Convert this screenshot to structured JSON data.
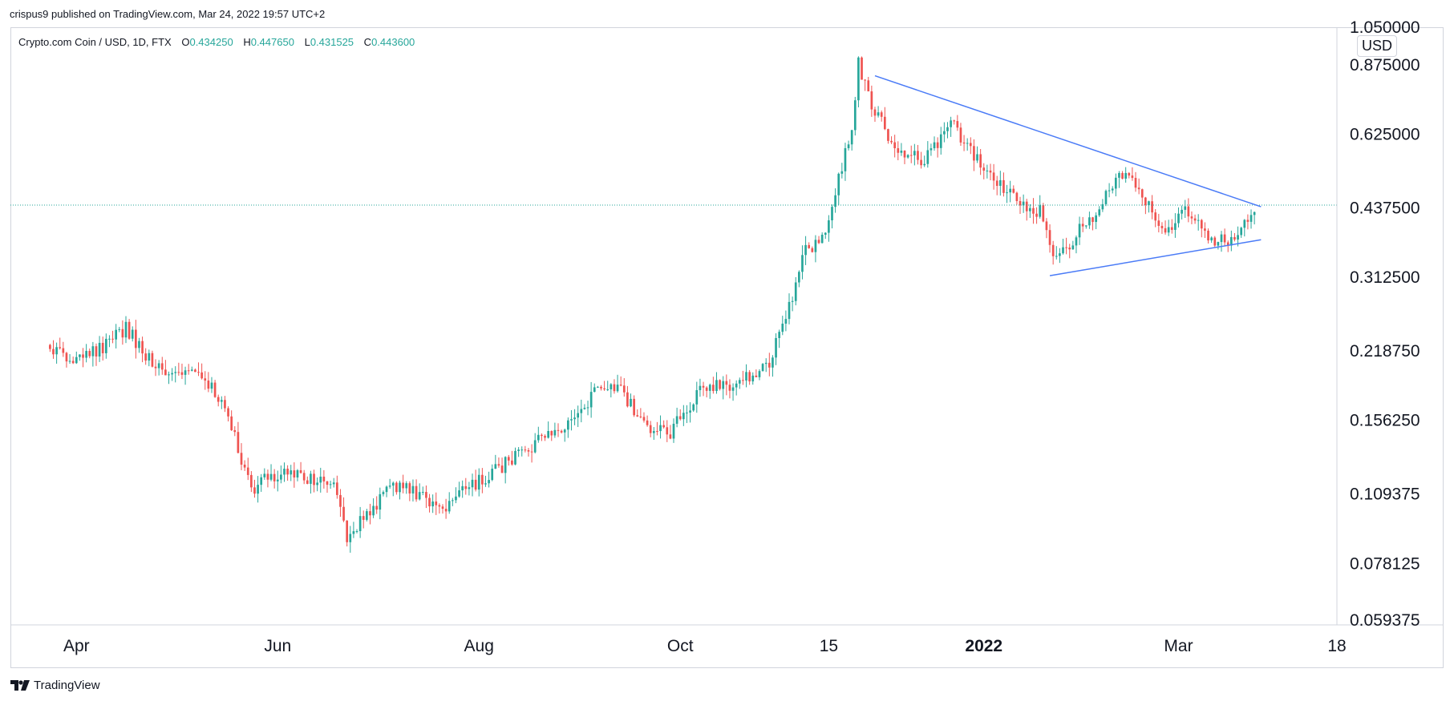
{
  "attribution": "crispus9 published on TradingView.com, Mar 24, 2022 19:57 UTC+2",
  "legend": {
    "symbol": "Crypto.com Coin / USD, 1D, FTX",
    "open_key": "O",
    "open": "0.434250",
    "high_key": "H",
    "high": "0.447650",
    "low_key": "L",
    "low": "0.431525",
    "close_key": "C",
    "close": "0.443600"
  },
  "currency_badge": "USD",
  "footer_logo": "TradingView",
  "colors": {
    "up": "#26a69a",
    "down": "#ef5350",
    "trendline": "#4a7bf7",
    "grid": "#d1d4dc"
  },
  "chart_data": {
    "type": "candlestick",
    "title": "Crypto.com Coin / USD, 1D, FTX",
    "y_scale": "log",
    "ylim": [
      0.058,
      1.05
    ],
    "y_ticks": [
      "1.050000",
      "0.875000",
      "0.625000",
      "0.437500",
      "0.312500",
      "0.218750",
      "0.156250",
      "0.109375",
      "0.078125",
      "0.059375"
    ],
    "y_tick_values": [
      1.05,
      0.875,
      0.625,
      0.4375,
      0.3125,
      0.21875,
      0.15625,
      0.109375,
      0.078125,
      0.059375
    ],
    "x_range": [
      "2021-03-12",
      "2022-04-18"
    ],
    "x_ticks": [
      {
        "label": "Apr",
        "date": "2021-04-01",
        "bold": false
      },
      {
        "label": "Jun",
        "date": "2021-06-01",
        "bold": false
      },
      {
        "label": "Aug",
        "date": "2021-08-01",
        "bold": false
      },
      {
        "label": "Oct",
        "date": "2021-10-01",
        "bold": false
      },
      {
        "label": "15",
        "date": "2021-11-15",
        "bold": false
      },
      {
        "label": "2022",
        "date": "2022-01-01",
        "bold": true
      },
      {
        "label": "Mar",
        "date": "2022-03-01",
        "bold": false
      },
      {
        "label": "18",
        "date": "2022-04-18",
        "bold": false
      }
    ],
    "last_price": 0.4436,
    "anchors": [
      [
        "2021-03-24",
        0.225
      ],
      [
        "2021-03-31",
        0.21
      ],
      [
        "2021-04-10",
        0.225
      ],
      [
        "2021-04-16",
        0.245
      ],
      [
        "2021-04-22",
        0.215
      ],
      [
        "2021-04-28",
        0.195
      ],
      [
        "2021-05-06",
        0.205
      ],
      [
        "2021-05-13",
        0.18
      ],
      [
        "2021-05-19",
        0.145
      ],
      [
        "2021-05-24",
        0.11
      ],
      [
        "2021-05-29",
        0.12
      ],
      [
        "2021-06-08",
        0.12
      ],
      [
        "2021-06-18",
        0.115
      ],
      [
        "2021-06-22",
        0.088
      ],
      [
        "2021-06-26",
        0.095
      ],
      [
        "2021-07-06",
        0.115
      ],
      [
        "2021-07-21",
        0.103
      ],
      [
        "2021-08-04",
        0.12
      ],
      [
        "2021-08-18",
        0.14
      ],
      [
        "2021-08-30",
        0.155
      ],
      [
        "2021-09-06",
        0.185
      ],
      [
        "2021-09-13",
        0.18
      ],
      [
        "2021-09-21",
        0.15
      ],
      [
        "2021-09-28",
        0.148
      ],
      [
        "2021-10-07",
        0.18
      ],
      [
        "2021-10-20",
        0.19
      ],
      [
        "2021-10-27",
        0.2
      ],
      [
        "2021-11-03",
        0.27
      ],
      [
        "2021-11-07",
        0.35
      ],
      [
        "2021-11-13",
        0.38
      ],
      [
        "2021-11-18",
        0.5
      ],
      [
        "2021-11-22",
        0.65
      ],
      [
        "2021-11-24",
        0.88
      ],
      [
        "2021-11-27",
        0.75
      ],
      [
        "2021-12-04",
        0.6
      ],
      [
        "2021-12-13",
        0.55
      ],
      [
        "2021-12-23",
        0.66
      ],
      [
        "2021-12-27",
        0.58
      ],
      [
        "2022-01-05",
        0.5
      ],
      [
        "2022-01-12",
        0.45
      ],
      [
        "2022-01-18",
        0.43
      ],
      [
        "2022-01-22",
        0.34
      ],
      [
        "2022-01-27",
        0.37
      ],
      [
        "2022-02-04",
        0.43
      ],
      [
        "2022-02-11",
        0.52
      ],
      [
        "2022-02-18",
        0.47
      ],
      [
        "2022-02-24",
        0.39
      ],
      [
        "2022-03-03",
        0.43
      ],
      [
        "2022-03-10",
        0.38
      ],
      [
        "2022-03-15",
        0.37
      ],
      [
        "2022-03-20",
        0.4
      ],
      [
        "2022-03-24",
        0.4436
      ]
    ],
    "trendlines": [
      {
        "name": "",
        "points": [
          [
            "2021-11-29",
            0.83
          ],
          [
            "2022-03-26",
            0.44
          ]
        ]
      },
      {
        "name": "",
        "points": [
          [
            "2022-01-21",
            0.315
          ],
          [
            "2022-03-26",
            0.375
          ]
        ]
      }
    ]
  }
}
